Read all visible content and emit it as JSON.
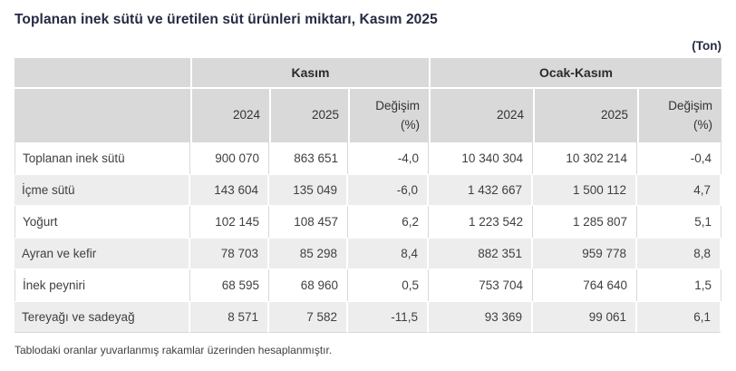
{
  "title": "Toplanan inek sütü ve üretilen süt ürünleri miktarı, Kasım 2025",
  "unit": "(Ton)",
  "footnote": "Tablodaki oranlar yuvarlanmış rakamlar üzerinden hesaplanmıştır.",
  "colors": {
    "header_bg": "#d9d9d9",
    "alt_row_bg": "#ededed",
    "title_color": "#252b42",
    "text_color": "#3f3f3f"
  },
  "chart_data": {
    "type": "table",
    "title": "Toplanan inek sütü ve üretilen süt ürünleri miktarı, Kasım 2025",
    "unit": "Ton",
    "column_groups": [
      "Kasım",
      "Ocak-Kasım"
    ],
    "columns": [
      "2024",
      "2025",
      "Değişim\n(%)",
      "2024",
      "2025",
      "Değişim\n(%)"
    ],
    "rows": [
      {
        "label": "Toplanan inek sütü",
        "values": [
          "900 070",
          "863 651",
          "-4,0",
          "10 340 304",
          "10 302 214",
          "-0,4"
        ]
      },
      {
        "label": "İçme sütü",
        "values": [
          "143 604",
          "135 049",
          "-6,0",
          "1 432 667",
          "1 500 112",
          "4,7"
        ]
      },
      {
        "label": "Yoğurt",
        "values": [
          "102 145",
          "108 457",
          "6,2",
          "1 223 542",
          "1 285 807",
          "5,1"
        ]
      },
      {
        "label": "Ayran ve kefir",
        "values": [
          "78 703",
          "85 298",
          "8,4",
          "882 351",
          "959 778",
          "8,8"
        ]
      },
      {
        "label": "İnek peyniri",
        "values": [
          "68 595",
          "68 960",
          "0,5",
          "753 704",
          "764 640",
          "1,5"
        ]
      },
      {
        "label": "Tereyağı ve sadeyağ",
        "values": [
          "8 571",
          "7 582",
          "-11,5",
          "93 369",
          "99 061",
          "6,1"
        ]
      }
    ],
    "footnote": "Tablodaki oranlar yuvarlanmış rakamlar üzerinden hesaplanmıştır."
  }
}
